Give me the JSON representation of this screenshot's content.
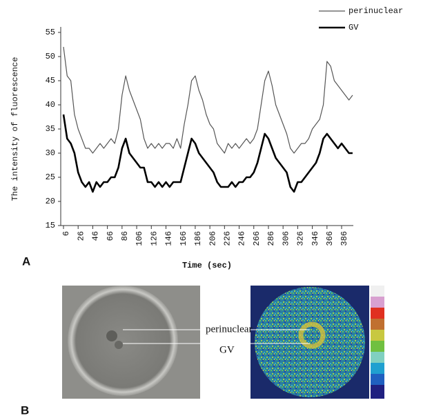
{
  "chart_data": {
    "type": "line",
    "x_label": "Time (sec)",
    "y_label": "The intensity of fluorescence",
    "x": [
      6,
      11,
      16,
      21,
      26,
      31,
      36,
      41,
      46,
      51,
      56,
      61,
      66,
      71,
      76,
      81,
      86,
      91,
      96,
      101,
      106,
      111,
      116,
      121,
      126,
      131,
      136,
      141,
      146,
      151,
      156,
      161,
      166,
      171,
      176,
      181,
      186,
      191,
      196,
      201,
      206,
      211,
      216,
      221,
      226,
      231,
      236,
      241,
      246,
      251,
      256,
      261,
      266,
      271,
      276,
      281,
      286,
      291,
      296,
      301,
      306,
      311,
      316,
      321,
      326,
      331,
      336,
      341,
      346,
      351,
      356,
      361,
      366,
      371,
      376,
      381,
      386,
      391,
      396,
      401
    ],
    "series": [
      {
        "name": "perinuclear",
        "color": "#555555",
        "values": [
          52,
          46,
          45,
          38,
          35,
          33,
          31,
          31,
          30,
          31,
          32,
          31,
          32,
          33,
          32,
          35,
          42,
          46,
          43,
          41,
          39,
          37,
          33,
          31,
          32,
          31,
          32,
          31,
          32,
          32,
          31,
          33,
          31,
          36,
          40,
          45,
          46,
          43,
          41,
          38,
          36,
          35,
          32,
          31,
          30,
          32,
          31,
          32,
          31,
          32,
          33,
          32,
          33,
          35,
          40,
          45,
          47,
          44,
          40,
          38,
          36,
          34,
          31,
          30,
          31,
          32,
          32,
          33,
          35,
          36,
          37,
          40,
          49,
          48,
          45,
          44,
          43,
          42,
          41,
          42
        ]
      },
      {
        "name": "GV",
        "color": "#000000",
        "values": [
          38,
          33,
          32,
          30,
          26,
          24,
          23,
          24,
          22,
          24,
          23,
          24,
          24,
          25,
          25,
          27,
          31,
          33,
          30,
          29,
          28,
          27,
          27,
          24,
          24,
          23,
          24,
          23,
          24,
          23,
          24,
          24,
          24,
          27,
          30,
          33,
          32,
          30,
          29,
          28,
          27,
          26,
          24,
          23,
          23,
          23,
          24,
          23,
          24,
          24,
          25,
          25,
          26,
          28,
          31,
          34,
          33,
          31,
          29,
          28,
          27,
          26,
          23,
          22,
          24,
          24,
          25,
          26,
          27,
          28,
          30,
          33,
          34,
          33,
          32,
          31,
          32,
          31,
          30,
          30
        ]
      }
    ],
    "xlim": [
      6,
      402
    ],
    "xticks": [
      6,
      26,
      46,
      66,
      86,
      106,
      126,
      146,
      166,
      186,
      206,
      226,
      246,
      266,
      286,
      306,
      326,
      346,
      366,
      386
    ],
    "ylim": [
      15,
      55
    ],
    "yticks": [
      15,
      20,
      25,
      30,
      35,
      40,
      45,
      50,
      55
    ]
  },
  "panels": [
    "A",
    "B"
  ],
  "image_labels": [
    "perinuclear",
    "GV"
  ]
}
